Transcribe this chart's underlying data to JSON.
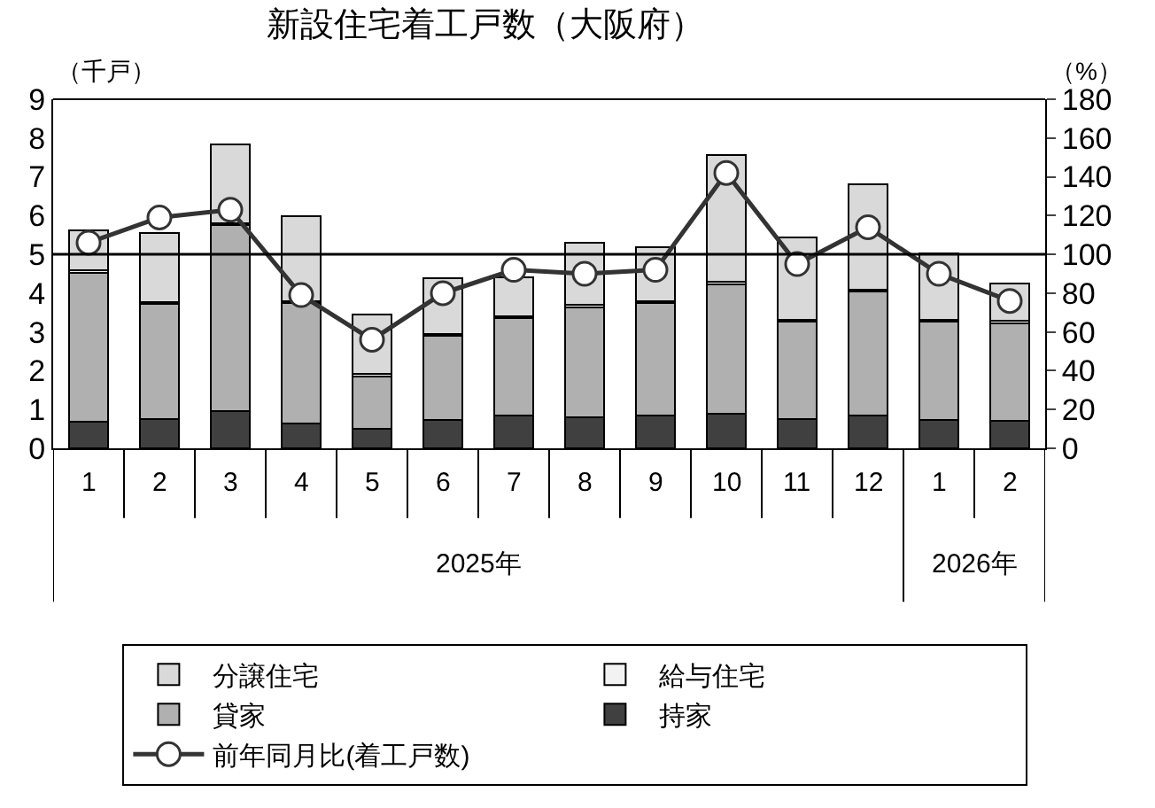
{
  "chart_data": {
    "type": "bar",
    "stacked": true,
    "title": "新設住宅着工戸数（大阪府）",
    "ylabel": "（千戸）",
    "y2label": "（%）",
    "categories": [
      "1",
      "2",
      "3",
      "4",
      "5",
      "6",
      "7",
      "8",
      "9",
      "10",
      "11",
      "12",
      "1",
      "2"
    ],
    "annotations": [
      "2025年",
      "2026年"
    ],
    "series": [
      {
        "name": "持家",
        "color": "#404040",
        "values": [
          0.68,
          0.76,
          0.95,
          0.63,
          0.51,
          0.73,
          0.84,
          0.81,
          0.84,
          0.88,
          0.76,
          0.84,
          0.73,
          0.7
        ]
      },
      {
        "name": "貸家",
        "color": "#b0b0b0",
        "values": [
          3.84,
          2.97,
          4.81,
          3.12,
          1.35,
          2.16,
          2.51,
          2.83,
          2.9,
          3.35,
          2.51,
          3.2,
          2.54,
          2.53
        ]
      },
      {
        "name": "給与住宅",
        "color": "#f2f2f2",
        "values": [
          0.08,
          0.05,
          0.05,
          0.05,
          0.05,
          0.05,
          0.05,
          0.05,
          0.05,
          0.07,
          0.05,
          0.05,
          0.05,
          0.05
        ]
      },
      {
        "name": "分譲住宅",
        "color": "#d9d9d9",
        "values": [
          1.02,
          1.76,
          2.02,
          2.19,
          1.54,
          1.44,
          1.0,
          1.6,
          1.39,
          3.26,
          2.11,
          2.71,
          1.7,
          0.98
        ]
      },
      {
        "name": "前年同月比(着工戸数)",
        "type": "line",
        "axis": "y2",
        "color": "#333333",
        "marker": "circle",
        "values": [
          106,
          119,
          123,
          79,
          56,
          80,
          92,
          90,
          92,
          142,
          95,
          114,
          90,
          76
        ]
      }
    ],
    "ylim": [
      0,
      9
    ],
    "yticks": [
      0,
      1,
      2,
      3,
      4,
      5,
      6,
      7,
      8,
      9
    ],
    "y2lim": [
      0,
      180
    ],
    "y2ticks": [
      0,
      20,
      40,
      60,
      80,
      100,
      120,
      140,
      160,
      180
    ],
    "ref_lines": [
      {
        "axis": "y2",
        "value": 100,
        "color": "#000000"
      }
    ],
    "legend": "bottom"
  }
}
